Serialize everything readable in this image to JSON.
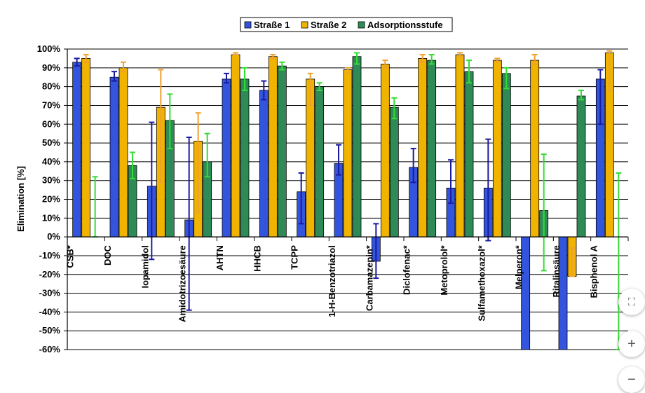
{
  "chart_data": {
    "type": "bar",
    "ylabel": "Elimination [%]",
    "ylim": [
      -60,
      100
    ],
    "yticks": [
      -60,
      -50,
      -40,
      -30,
      -20,
      -10,
      0,
      10,
      20,
      30,
      40,
      50,
      60,
      70,
      80,
      90,
      100
    ],
    "ytick_suffix": "%",
    "grid": true,
    "legend_position": "top-center",
    "categories": [
      "CSB*",
      "DOC",
      "Iopamidol",
      "Amidotrizoesäure",
      "AHTN",
      "HHCB",
      "TCPP",
      "1-H-Benzotriazol",
      "Carbamazepin*",
      "Diclofenac*",
      "Metoprolol*",
      "Sulfamethoxazol*",
      "Melperon*",
      "Ritalinsäure",
      "Bisphenol A"
    ],
    "series": [
      {
        "name": "Straße 1",
        "color": "#3355dd",
        "error_color": "#1a1aa0",
        "values": [
          93,
          85,
          27,
          9,
          84,
          78,
          24,
          39,
          -13,
          37,
          26,
          26,
          -60,
          -60,
          84
        ],
        "err_low": [
          91,
          83,
          -12,
          -39,
          82,
          73,
          7,
          33,
          -22,
          29,
          18,
          -2,
          null,
          null,
          60
        ],
        "err_high": [
          95,
          88,
          61,
          53,
          87,
          83,
          34,
          49,
          7,
          47,
          41,
          52,
          null,
          null,
          89
        ]
      },
      {
        "name": "Straße 2",
        "color": "#f0b400",
        "error_color": "#f0a030",
        "values": [
          95,
          90,
          69,
          51,
          97,
          96,
          84,
          89,
          92,
          95,
          97,
          94,
          94,
          -21,
          98
        ],
        "err_low": [
          93,
          88,
          29,
          13,
          97,
          95,
          70,
          87,
          90,
          93,
          96,
          93,
          92,
          -6,
          78
        ],
        "err_high": [
          97,
          93,
          89,
          66,
          98,
          97,
          87,
          90,
          94,
          97,
          98,
          95,
          97,
          -21,
          99
        ]
      },
      {
        "name": "Adsorptionsstufe",
        "color": "#2e8b57",
        "error_color": "#33dd33",
        "values": [
          0,
          38,
          62,
          40,
          84,
          91,
          80,
          96,
          69,
          94,
          88,
          87,
          14,
          75,
          null
        ],
        "err_low": [
          0,
          31,
          47,
          32,
          78,
          89,
          78,
          92,
          63,
          92,
          82,
          79,
          -18,
          73,
          -60
        ],
        "err_high": [
          32,
          45,
          76,
          55,
          90,
          93,
          82,
          98,
          74,
          97,
          94,
          90,
          44,
          78,
          34
        ]
      }
    ]
  },
  "controls": {
    "fit_icon": "fit-screen-icon",
    "zoom_in_label": "+",
    "zoom_out_label": "−"
  }
}
